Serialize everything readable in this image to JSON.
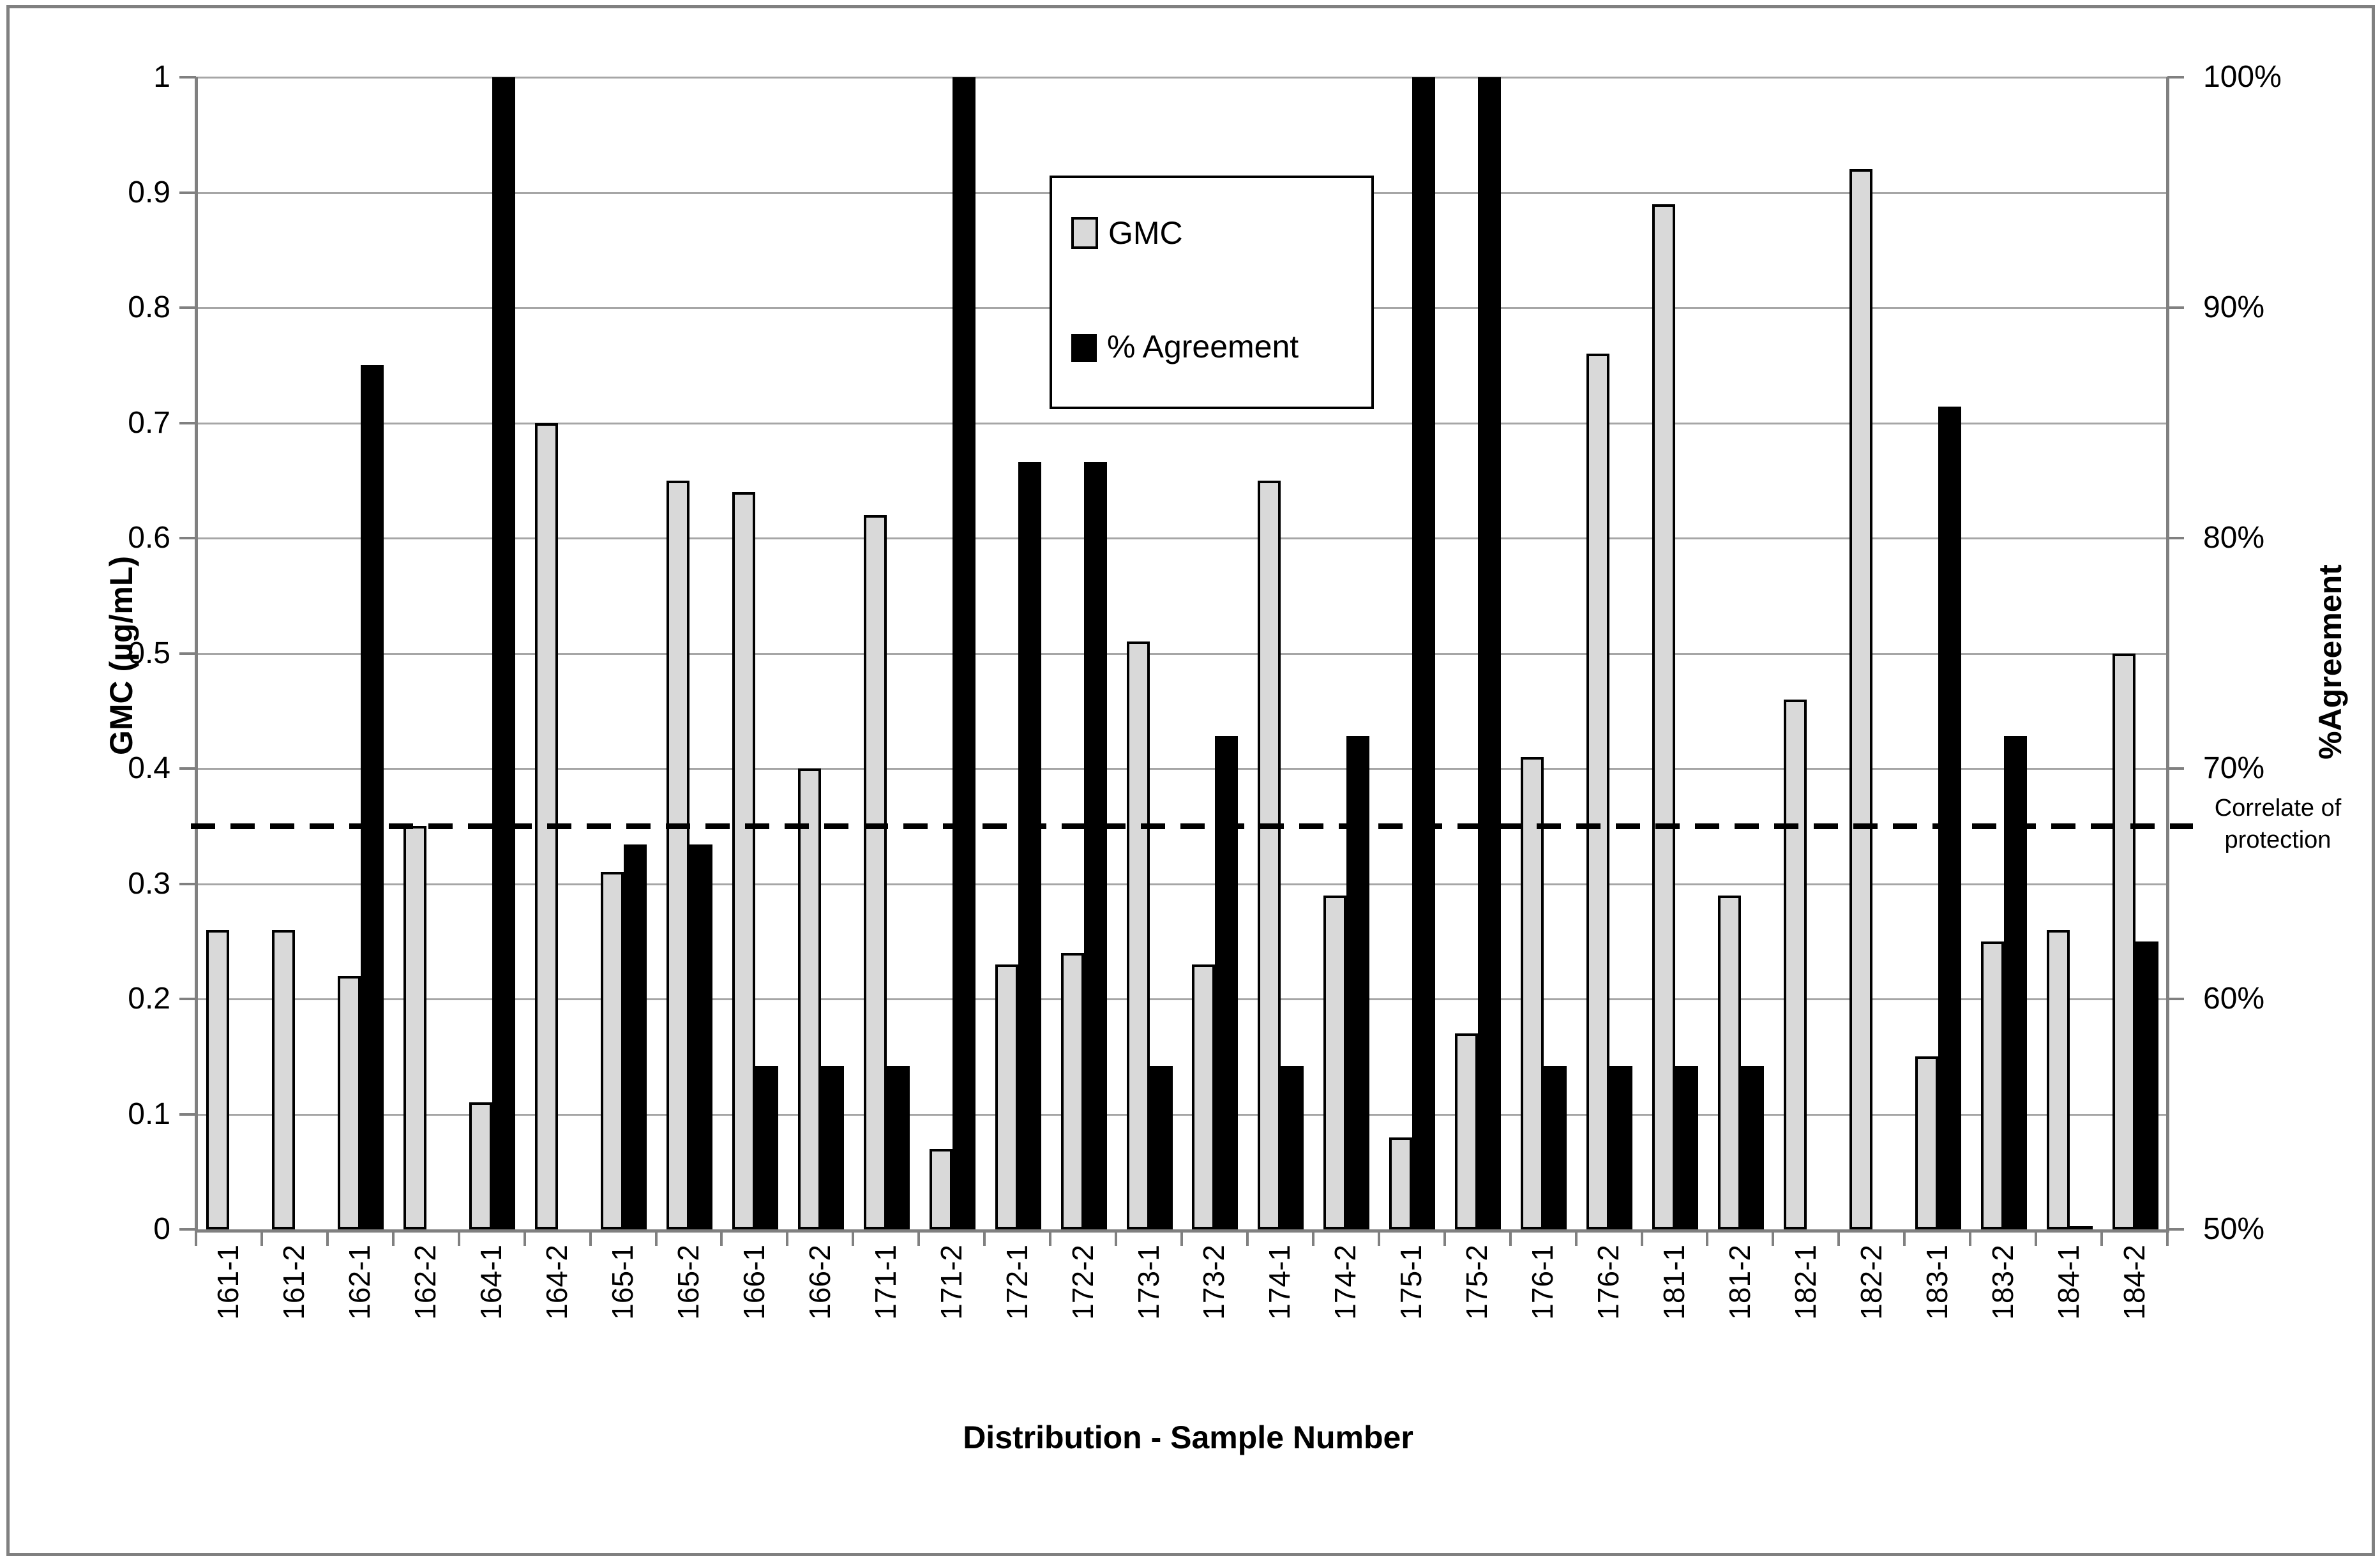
{
  "chart_data": {
    "type": "bar",
    "title": "",
    "categories": [
      "161-1",
      "161-2",
      "162-1",
      "162-2",
      "164-1",
      "164-2",
      "165-1",
      "165-2",
      "166-1",
      "166-2",
      "171-1",
      "171-2",
      "172-1",
      "172-2",
      "173-1",
      "173-2",
      "174-1",
      "174-2",
      "175-1",
      "175-2",
      "176-1",
      "176-2",
      "181-1",
      "181-2",
      "182-1",
      "182-2",
      "183-1",
      "183-2",
      "184-1",
      "184-2"
    ],
    "series": [
      {
        "name": "GMC",
        "axis": "left",
        "color": "#d9d9d9",
        "border_color": "#000000",
        "values": [
          0.26,
          0.26,
          0.22,
          0.35,
          0.11,
          0.7,
          0.31,
          0.65,
          0.64,
          0.4,
          0.62,
          0.07,
          0.23,
          0.24,
          0.51,
          0.23,
          0.65,
          0.29,
          0.08,
          0.17,
          0.41,
          0.76,
          0.89,
          0.29,
          0.46,
          0.92,
          0.15,
          0.25,
          0.26,
          0.5
        ]
      },
      {
        "name": "% Agreement",
        "axis": "right",
        "color": "#000000",
        "values": [
          null,
          null,
          87.5,
          null,
          100,
          null,
          66.7,
          66.7,
          57.1,
          57.1,
          57.1,
          100,
          83.3,
          83.3,
          57.1,
          71.4,
          57.1,
          71.4,
          100,
          100,
          57.1,
          57.1,
          57.1,
          57.1,
          null,
          null,
          85.7,
          71.4,
          50,
          62.5
        ]
      }
    ],
    "left_axis": {
      "label": "GMC (µg/mL)",
      "min": 0,
      "max": 1,
      "tick_step": 0.1,
      "ticks": [
        "0",
        "0.1",
        "0.2",
        "0.3",
        "0.4",
        "0.5",
        "0.6",
        "0.7",
        "0.8",
        "0.9",
        "1"
      ]
    },
    "right_axis": {
      "label": "%Agreement",
      "min": 50,
      "max": 100,
      "tick_step": 10,
      "ticks": [
        "50%",
        "60%",
        "70%",
        "80%",
        "90%",
        "100%"
      ]
    },
    "x_axis": {
      "label": "Distribution - Sample Number"
    },
    "reference_line": {
      "left_axis_value": 0.35,
      "right_axis_value": "67.5%",
      "style": "dashed",
      "color": "#000000",
      "label": "Correlate of protection"
    },
    "legend": {
      "position": "top-center",
      "entries": [
        "GMC",
        "% Agreement"
      ]
    },
    "grid": true,
    "colors": {
      "gridline": "#a6a6a6",
      "axis": "#808080",
      "gmc_fill": "#d9d9d9",
      "agreement_fill": "#000000",
      "background": "#ffffff"
    }
  }
}
